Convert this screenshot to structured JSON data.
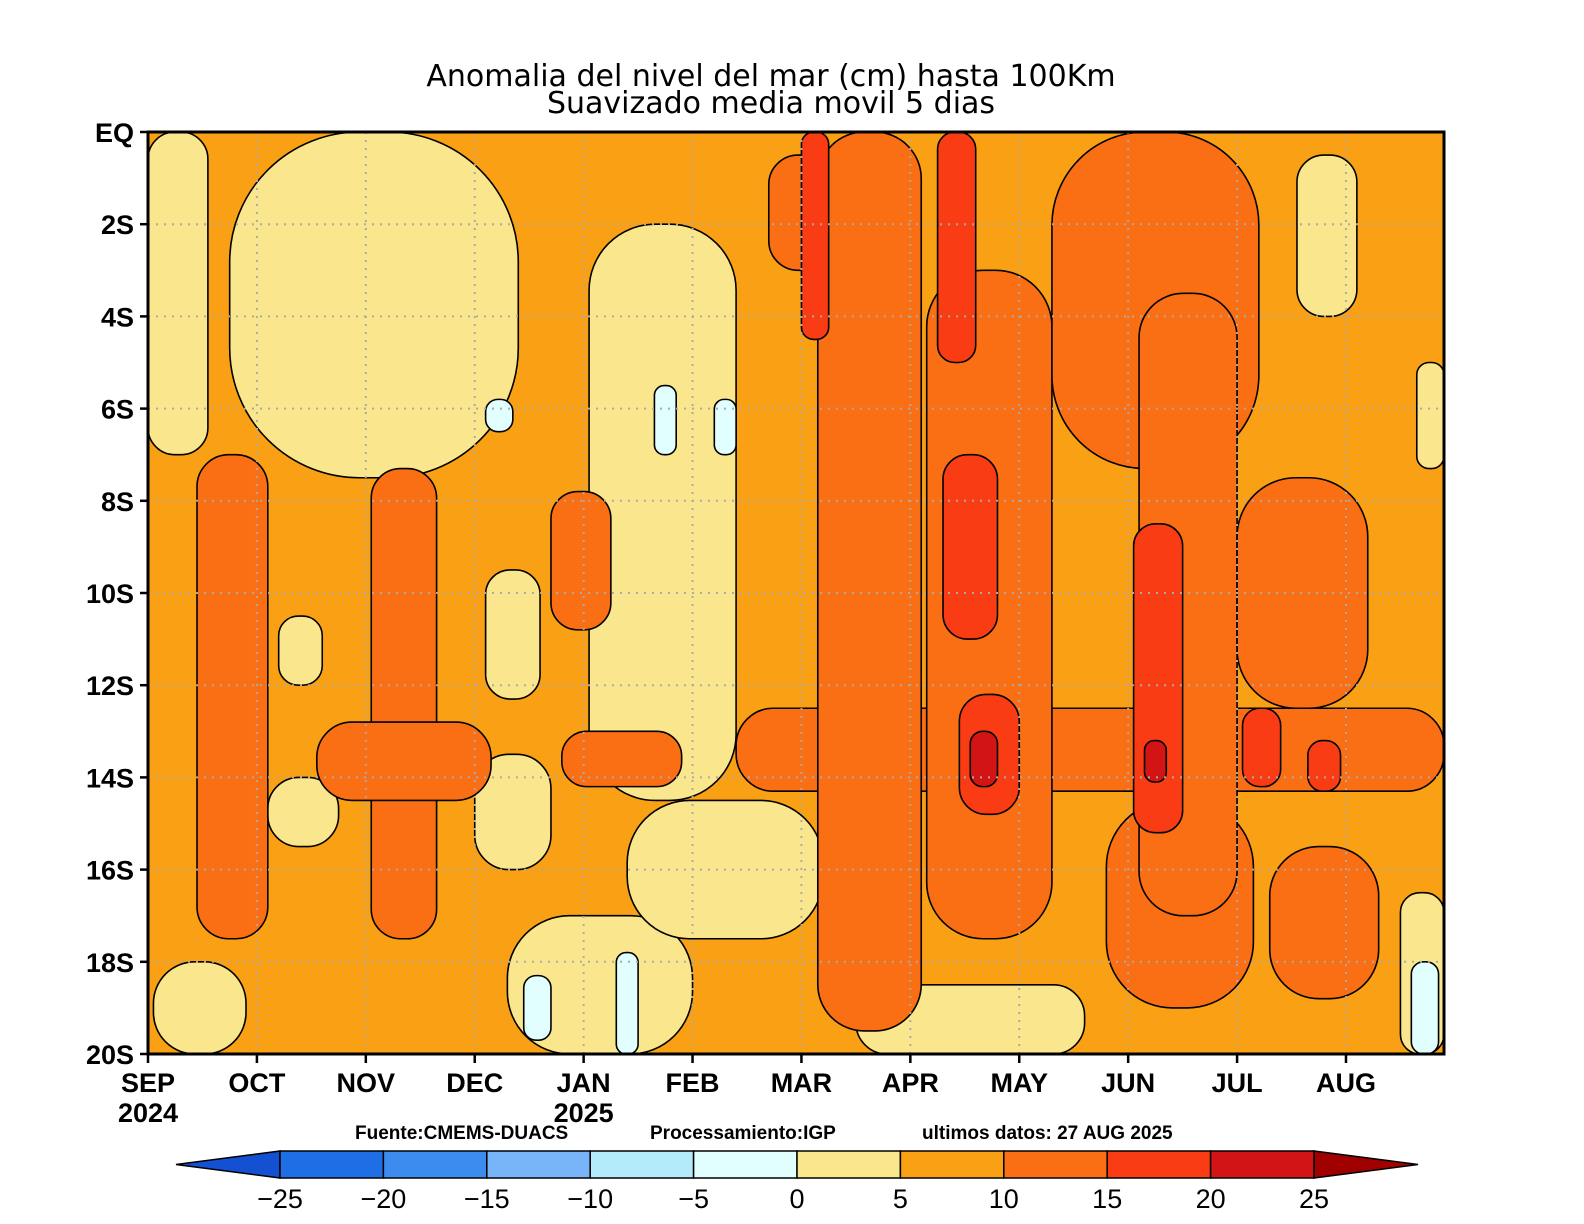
{
  "chart_data": {
    "type": "heatmap",
    "title": "Anomalia del nivel del mar (cm) hasta 100Km",
    "subtitle": "Suavizado media movil 5 dias",
    "x_ticks": [
      "SEP",
      "OCT",
      "NOV",
      "DEC",
      "JAN",
      "FEB",
      "MAR",
      "APR",
      "MAY",
      "JUN",
      "JUL",
      "AUG"
    ],
    "x_tick_positions_month_index": [
      0,
      1,
      2,
      3,
      4,
      5,
      6,
      7,
      8,
      9,
      10,
      11
    ],
    "x_years": [
      {
        "label": "2024",
        "month_index": 0
      },
      {
        "label": "2025",
        "month_index": 4
      }
    ],
    "xlim_month_index": [
      0,
      11.9
    ],
    "y_ticks": [
      "EQ",
      "2S",
      "4S",
      "6S",
      "8S",
      "10S",
      "12S",
      "14S",
      "16S",
      "18S",
      "20S"
    ],
    "y_tick_values_deg_south": [
      0,
      2,
      4,
      6,
      8,
      10,
      12,
      14,
      16,
      18,
      20
    ],
    "ylim_deg_south": [
      0,
      20
    ],
    "grid": true,
    "credits": {
      "source": "Fuente:CMEMS-DUACS",
      "processing": "Processamiento:IGP",
      "latest": "ultimos datos: 27 AUG 2025"
    },
    "colorbar": {
      "labels": [
        "−25",
        "−20",
        "−15",
        "−10",
        "−5",
        "0",
        "5",
        "10",
        "15",
        "20",
        "25"
      ],
      "levels": [
        -25,
        -20,
        -15,
        -10,
        -5,
        0,
        5,
        10,
        15,
        20,
        25
      ],
      "colors": [
        "#1e6ee6",
        "#3c8cf0",
        "#78b4f8",
        "#b4ebfa",
        "#e1ffff",
        "#fae68c",
        "#faa014",
        "#fa6e14",
        "#fa3c14",
        "#d21414"
      ],
      "under_color": "#1450d2",
      "over_color": "#a00000"
    },
    "level_colors": {
      "-5": "#e1ffff",
      "0": "#fae68c",
      "5": "#faa014",
      "10": "#fa6e14",
      "15": "#fa3c14",
      "20": "#d21414"
    },
    "background_level": 5,
    "regions": [
      {
        "level": 0,
        "months": [
          0.0,
          0.55
        ],
        "lat": [
          0,
          7
        ]
      },
      {
        "level": 0,
        "months": [
          0.75,
          3.4
        ],
        "lat": [
          0,
          7.5
        ]
      },
      {
        "level": 0,
        "months": [
          4.05,
          5.4
        ],
        "lat": [
          2,
          14.5
        ]
      },
      {
        "level": 0,
        "months": [
          0.05,
          0.9
        ],
        "lat": [
          18,
          20
        ]
      },
      {
        "level": 0,
        "months": [
          1.1,
          1.75
        ],
        "lat": [
          14,
          15.5
        ]
      },
      {
        "level": 0,
        "months": [
          3.0,
          3.7
        ],
        "lat": [
          13.5,
          16
        ]
      },
      {
        "level": 0,
        "months": [
          3.3,
          5.0
        ],
        "lat": [
          17,
          20
        ]
      },
      {
        "level": 0,
        "months": [
          4.4,
          6.2
        ],
        "lat": [
          14.5,
          17.5
        ]
      },
      {
        "level": 0,
        "months": [
          1.2,
          1.6
        ],
        "lat": [
          10.5,
          12
        ]
      },
      {
        "level": 0,
        "months": [
          3.1,
          3.6
        ],
        "lat": [
          9.5,
          12.3
        ]
      },
      {
        "level": 0,
        "months": [
          6.5,
          8.6
        ],
        "lat": [
          18.5,
          20
        ]
      },
      {
        "level": 0,
        "months": [
          9.75,
          9.95
        ],
        "lat": [
          1.5,
          4.5
        ]
      },
      {
        "level": 0,
        "months": [
          10.55,
          11.1
        ],
        "lat": [
          0.5,
          4
        ]
      },
      {
        "level": 0,
        "months": [
          11.65,
          11.9
        ],
        "lat": [
          5,
          7.3
        ]
      },
      {
        "level": 0,
        "months": [
          11.5,
          11.9
        ],
        "lat": [
          16.5,
          20
        ]
      },
      {
        "level": -5,
        "months": [
          3.45,
          3.7
        ],
        "lat": [
          18.3,
          19.7
        ]
      },
      {
        "level": -5,
        "months": [
          4.3,
          4.5
        ],
        "lat": [
          17.8,
          20
        ]
      },
      {
        "level": -5,
        "months": [
          5.2,
          5.4
        ],
        "lat": [
          5.8,
          7
        ]
      },
      {
        "level": -5,
        "months": [
          4.65,
          4.85
        ],
        "lat": [
          5.5,
          7
        ]
      },
      {
        "level": -5,
        "months": [
          3.1,
          3.35
        ],
        "lat": [
          5.8,
          6.5
        ]
      },
      {
        "level": -5,
        "months": [
          11.6,
          11.85
        ],
        "lat": [
          18,
          20
        ]
      },
      {
        "level": 10,
        "months": [
          0.45,
          1.1
        ],
        "lat": [
          7,
          17.5
        ]
      },
      {
        "level": 10,
        "months": [
          2.05,
          2.65
        ],
        "lat": [
          7.3,
          17.5
        ]
      },
      {
        "level": 10,
        "months": [
          1.55,
          3.15
        ],
        "lat": [
          12.8,
          14.5
        ]
      },
      {
        "level": 10,
        "months": [
          3.8,
          4.9
        ],
        "lat": [
          13,
          14.2
        ]
      },
      {
        "level": 10,
        "months": [
          3.7,
          4.25
        ],
        "lat": [
          7.8,
          10.8
        ]
      },
      {
        "level": 10,
        "months": [
          5.4,
          11.9
        ],
        "lat": [
          12.5,
          14.3
        ]
      },
      {
        "level": 10,
        "months": [
          5.7,
          6.3
        ],
        "lat": [
          0.5,
          3
        ]
      },
      {
        "level": 10,
        "months": [
          6.15,
          7.1
        ],
        "lat": [
          0,
          19.5
        ]
      },
      {
        "level": 10,
        "months": [
          7.15,
          8.3
        ],
        "lat": [
          3,
          17.5
        ]
      },
      {
        "level": 10,
        "months": [
          8.3,
          10.2
        ],
        "lat": [
          0,
          7.3
        ]
      },
      {
        "level": 10,
        "months": [
          8.8,
          10.15
        ],
        "lat": [
          14.5,
          19
        ]
      },
      {
        "level": 10,
        "months": [
          9.1,
          10.0
        ],
        "lat": [
          3.5,
          17
        ]
      },
      {
        "level": 10,
        "months": [
          10.0,
          11.2
        ],
        "lat": [
          7.5,
          12.5
        ]
      },
      {
        "level": 10,
        "months": [
          10.3,
          11.3
        ],
        "lat": [
          15.5,
          18.8
        ]
      },
      {
        "level": 15,
        "months": [
          6.0,
          6.25
        ],
        "lat": [
          0,
          4.5
        ]
      },
      {
        "level": 15,
        "months": [
          7.25,
          7.6
        ],
        "lat": [
          0,
          5
        ]
      },
      {
        "level": 15,
        "months": [
          7.3,
          7.8
        ],
        "lat": [
          7,
          11
        ]
      },
      {
        "level": 15,
        "months": [
          7.45,
          8.0
        ],
        "lat": [
          12.2,
          14.8
        ]
      },
      {
        "level": 15,
        "months": [
          9.05,
          9.5
        ],
        "lat": [
          8.5,
          15.2
        ]
      },
      {
        "level": 15,
        "months": [
          10.05,
          10.4
        ],
        "lat": [
          12.5,
          14.2
        ]
      },
      {
        "level": 15,
        "months": [
          10.65,
          10.95
        ],
        "lat": [
          13.2,
          14.3
        ]
      },
      {
        "level": 20,
        "months": [
          7.55,
          7.8
        ],
        "lat": [
          13,
          14.2
        ]
      },
      {
        "level": 20,
        "months": [
          9.15,
          9.35
        ],
        "lat": [
          13.2,
          14.1
        ]
      }
    ]
  }
}
